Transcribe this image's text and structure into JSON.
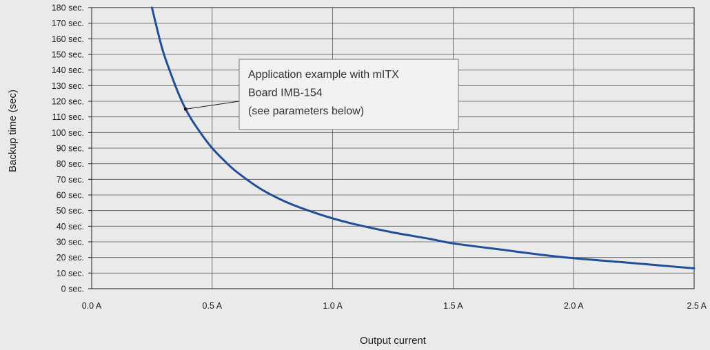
{
  "chart_data": {
    "type": "line",
    "title": "",
    "xlabel": "Output current",
    "ylabel": "Backup time (sec)",
    "xlim": [
      0,
      2.5
    ],
    "ylim": [
      0,
      180
    ],
    "grid": true,
    "x_ticks": [
      {
        "value": 0,
        "label": "0.0 A"
      },
      {
        "value": 0.5,
        "label": "0.5 A"
      },
      {
        "value": 1.0,
        "label": "1.0 A"
      },
      {
        "value": 1.5,
        "label": "1.5 A"
      },
      {
        "value": 2.0,
        "label": "2.0 A"
      },
      {
        "value": 2.5,
        "label": "2.5 A"
      }
    ],
    "y_ticks": [
      {
        "value": 0,
        "label": "0 sec."
      },
      {
        "value": 10,
        "label": "10 sec."
      },
      {
        "value": 20,
        "label": "20 sec."
      },
      {
        "value": 30,
        "label": "30 sec."
      },
      {
        "value": 40,
        "label": "40 sec."
      },
      {
        "value": 50,
        "label": "50 sec."
      },
      {
        "value": 60,
        "label": "60 sec."
      },
      {
        "value": 70,
        "label": "70 sec."
      },
      {
        "value": 80,
        "label": "80 sec."
      },
      {
        "value": 90,
        "label": "90 sec."
      },
      {
        "value": 100,
        "label": "100 sec."
      },
      {
        "value": 110,
        "label": "110 sec."
      },
      {
        "value": 120,
        "label": "120 sec."
      },
      {
        "value": 130,
        "label": "130 sec."
      },
      {
        "value": 140,
        "label": "140 sec."
      },
      {
        "value": 150,
        "label": "150 sec."
      },
      {
        "value": 160,
        "label": "160 sec."
      },
      {
        "value": 170,
        "label": "170 sec."
      },
      {
        "value": 180,
        "label": "180 sec."
      }
    ],
    "series": [
      {
        "color": "#1f4e9c",
        "x": [
          0.25,
          0.28,
          0.3,
          0.33,
          0.36,
          0.39,
          0.42,
          0.46,
          0.5,
          0.55,
          0.6,
          0.7,
          0.8,
          0.9,
          1.0,
          1.1,
          1.25,
          1.4,
          1.5,
          1.7,
          1.85,
          2.0,
          2.2,
          2.35,
          2.5
        ],
        "y": [
          180,
          161,
          150,
          137,
          125,
          115,
          107,
          98,
          90,
          82,
          75,
          64,
          56,
          50,
          45,
          41,
          36,
          32,
          29,
          25,
          22,
          19.5,
          17,
          15,
          13
        ]
      }
    ],
    "annotations": [
      {
        "lines": [
          "Application example with mITX",
          "Board IMB-154",
          "(see parameters below)"
        ],
        "point": {
          "x": 0.39,
          "y": 115
        }
      }
    ]
  }
}
